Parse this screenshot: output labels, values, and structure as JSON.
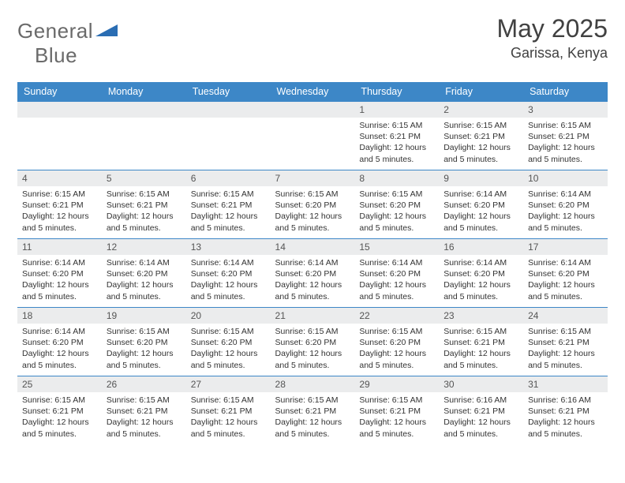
{
  "brand": {
    "part1": "General",
    "part2": "Blue"
  },
  "title": "May 2025",
  "location": "Garissa, Kenya",
  "colors": {
    "header_bg": "#3d87c7",
    "header_text": "#ffffff",
    "cell_border": "#3d87c7",
    "daynum_bg": "#ebeced",
    "logo_triangle": "#2a6db3"
  },
  "weekdays": [
    "Sunday",
    "Monday",
    "Tuesday",
    "Wednesday",
    "Thursday",
    "Friday",
    "Saturday"
  ],
  "cells": [
    {
      "day": "",
      "lines": []
    },
    {
      "day": "",
      "lines": []
    },
    {
      "day": "",
      "lines": []
    },
    {
      "day": "",
      "lines": []
    },
    {
      "day": "1",
      "lines": [
        "Sunrise: 6:15 AM",
        "Sunset: 6:21 PM",
        "Daylight: 12 hours and 5 minutes."
      ]
    },
    {
      "day": "2",
      "lines": [
        "Sunrise: 6:15 AM",
        "Sunset: 6:21 PM",
        "Daylight: 12 hours and 5 minutes."
      ]
    },
    {
      "day": "3",
      "lines": [
        "Sunrise: 6:15 AM",
        "Sunset: 6:21 PM",
        "Daylight: 12 hours and 5 minutes."
      ]
    },
    {
      "day": "4",
      "lines": [
        "Sunrise: 6:15 AM",
        "Sunset: 6:21 PM",
        "Daylight: 12 hours and 5 minutes."
      ]
    },
    {
      "day": "5",
      "lines": [
        "Sunrise: 6:15 AM",
        "Sunset: 6:21 PM",
        "Daylight: 12 hours and 5 minutes."
      ]
    },
    {
      "day": "6",
      "lines": [
        "Sunrise: 6:15 AM",
        "Sunset: 6:21 PM",
        "Daylight: 12 hours and 5 minutes."
      ]
    },
    {
      "day": "7",
      "lines": [
        "Sunrise: 6:15 AM",
        "Sunset: 6:20 PM",
        "Daylight: 12 hours and 5 minutes."
      ]
    },
    {
      "day": "8",
      "lines": [
        "Sunrise: 6:15 AM",
        "Sunset: 6:20 PM",
        "Daylight: 12 hours and 5 minutes."
      ]
    },
    {
      "day": "9",
      "lines": [
        "Sunrise: 6:14 AM",
        "Sunset: 6:20 PM",
        "Daylight: 12 hours and 5 minutes."
      ]
    },
    {
      "day": "10",
      "lines": [
        "Sunrise: 6:14 AM",
        "Sunset: 6:20 PM",
        "Daylight: 12 hours and 5 minutes."
      ]
    },
    {
      "day": "11",
      "lines": [
        "Sunrise: 6:14 AM",
        "Sunset: 6:20 PM",
        "Daylight: 12 hours and 5 minutes."
      ]
    },
    {
      "day": "12",
      "lines": [
        "Sunrise: 6:14 AM",
        "Sunset: 6:20 PM",
        "Daylight: 12 hours and 5 minutes."
      ]
    },
    {
      "day": "13",
      "lines": [
        "Sunrise: 6:14 AM",
        "Sunset: 6:20 PM",
        "Daylight: 12 hours and 5 minutes."
      ]
    },
    {
      "day": "14",
      "lines": [
        "Sunrise: 6:14 AM",
        "Sunset: 6:20 PM",
        "Daylight: 12 hours and 5 minutes."
      ]
    },
    {
      "day": "15",
      "lines": [
        "Sunrise: 6:14 AM",
        "Sunset: 6:20 PM",
        "Daylight: 12 hours and 5 minutes."
      ]
    },
    {
      "day": "16",
      "lines": [
        "Sunrise: 6:14 AM",
        "Sunset: 6:20 PM",
        "Daylight: 12 hours and 5 minutes."
      ]
    },
    {
      "day": "17",
      "lines": [
        "Sunrise: 6:14 AM",
        "Sunset: 6:20 PM",
        "Daylight: 12 hours and 5 minutes."
      ]
    },
    {
      "day": "18",
      "lines": [
        "Sunrise: 6:14 AM",
        "Sunset: 6:20 PM",
        "Daylight: 12 hours and 5 minutes."
      ]
    },
    {
      "day": "19",
      "lines": [
        "Sunrise: 6:15 AM",
        "Sunset: 6:20 PM",
        "Daylight: 12 hours and 5 minutes."
      ]
    },
    {
      "day": "20",
      "lines": [
        "Sunrise: 6:15 AM",
        "Sunset: 6:20 PM",
        "Daylight: 12 hours and 5 minutes."
      ]
    },
    {
      "day": "21",
      "lines": [
        "Sunrise: 6:15 AM",
        "Sunset: 6:20 PM",
        "Daylight: 12 hours and 5 minutes."
      ]
    },
    {
      "day": "22",
      "lines": [
        "Sunrise: 6:15 AM",
        "Sunset: 6:20 PM",
        "Daylight: 12 hours and 5 minutes."
      ]
    },
    {
      "day": "23",
      "lines": [
        "Sunrise: 6:15 AM",
        "Sunset: 6:21 PM",
        "Daylight: 12 hours and 5 minutes."
      ]
    },
    {
      "day": "24",
      "lines": [
        "Sunrise: 6:15 AM",
        "Sunset: 6:21 PM",
        "Daylight: 12 hours and 5 minutes."
      ]
    },
    {
      "day": "25",
      "lines": [
        "Sunrise: 6:15 AM",
        "Sunset: 6:21 PM",
        "Daylight: 12 hours and 5 minutes."
      ]
    },
    {
      "day": "26",
      "lines": [
        "Sunrise: 6:15 AM",
        "Sunset: 6:21 PM",
        "Daylight: 12 hours and 5 minutes."
      ]
    },
    {
      "day": "27",
      "lines": [
        "Sunrise: 6:15 AM",
        "Sunset: 6:21 PM",
        "Daylight: 12 hours and 5 minutes."
      ]
    },
    {
      "day": "28",
      "lines": [
        "Sunrise: 6:15 AM",
        "Sunset: 6:21 PM",
        "Daylight: 12 hours and 5 minutes."
      ]
    },
    {
      "day": "29",
      "lines": [
        "Sunrise: 6:15 AM",
        "Sunset: 6:21 PM",
        "Daylight: 12 hours and 5 minutes."
      ]
    },
    {
      "day": "30",
      "lines": [
        "Sunrise: 6:16 AM",
        "Sunset: 6:21 PM",
        "Daylight: 12 hours and 5 minutes."
      ]
    },
    {
      "day": "31",
      "lines": [
        "Sunrise: 6:16 AM",
        "Sunset: 6:21 PM",
        "Daylight: 12 hours and 5 minutes."
      ]
    }
  ]
}
